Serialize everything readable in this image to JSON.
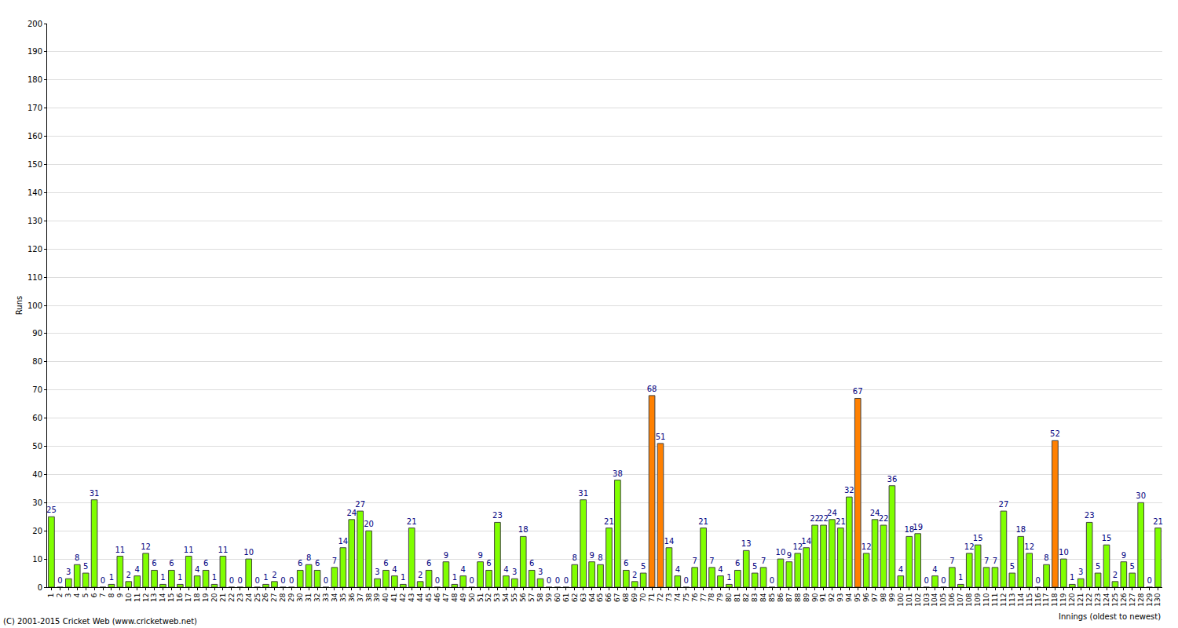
{
  "chart_data": {
    "type": "bar",
    "x_label": "Innings (oldest to newest)",
    "y_label": "Runs",
    "annotations": [
      "(C) 2001-2015 Cricket Web (www.cricketweb.net)"
    ],
    "categories": [
      "1",
      "2",
      "3",
      "4",
      "5",
      "6",
      "7",
      "8",
      "9",
      "10",
      "11",
      "12",
      "13",
      "14",
      "15",
      "16",
      "17",
      "18",
      "19",
      "20",
      "21",
      "22",
      "23",
      "24",
      "25",
      "26",
      "27",
      "28",
      "29",
      "30",
      "31",
      "32",
      "33",
      "34",
      "35",
      "36",
      "37",
      "38",
      "39",
      "40",
      "41",
      "42",
      "43",
      "44",
      "45",
      "46",
      "47",
      "48",
      "49",
      "50",
      "51",
      "52",
      "53",
      "54",
      "55",
      "56",
      "57",
      "58",
      "59",
      "60",
      "61",
      "62",
      "63",
      "64",
      "65",
      "66",
      "67",
      "68",
      "69",
      "70",
      "71",
      "72",
      "73",
      "74",
      "75",
      "76",
      "77",
      "78",
      "79",
      "80",
      "81",
      "82",
      "83",
      "84",
      "85",
      "86",
      "87",
      "88",
      "89",
      "90",
      "91",
      "92",
      "93",
      "94",
      "95",
      "96",
      "97",
      "98",
      "99",
      "100",
      "101",
      "102",
      "103",
      "104",
      "105",
      "106",
      "107",
      "108",
      "109",
      "110",
      "111",
      "112",
      "113",
      "114",
      "115",
      "116",
      "117",
      "118",
      "119",
      "120",
      "121",
      "122",
      "123",
      "124",
      "125",
      "126",
      "127",
      "128",
      "129",
      "130"
    ],
    "values": [
      25,
      0,
      3,
      8,
      5,
      31,
      0,
      1,
      11,
      2,
      4,
      12,
      6,
      1,
      6,
      1,
      11,
      4,
      6,
      1,
      11,
      0,
      0,
      10,
      0,
      1,
      2,
      0,
      0,
      6,
      8,
      6,
      0,
      7,
      14,
      24,
      27,
      20,
      3,
      6,
      4,
      1,
      21,
      2,
      6,
      0,
      9,
      1,
      4,
      0,
      9,
      6,
      23,
      4,
      3,
      18,
      6,
      3,
      0,
      0,
      0,
      8,
      31,
      9,
      8,
      21,
      38,
      6,
      2,
      5,
      68,
      51,
      14,
      4,
      0,
      7,
      21,
      7,
      4,
      1,
      6,
      13,
      5,
      7,
      0,
      10,
      9,
      12,
      14,
      22,
      22,
      24,
      21,
      32,
      67,
      12,
      24,
      22,
      36,
      4,
      18,
      19,
      0,
      4,
      0,
      7,
      1,
      12,
      15,
      7,
      7,
      27,
      5,
      18,
      12,
      0,
      8,
      52,
      10,
      1,
      3,
      23,
      5,
      15,
      2,
      9,
      5,
      30,
      0,
      21
    ],
    "colors": [
      "#80ff00",
      "#80ff00",
      "#80ff00",
      "#80ff00",
      "#80ff00",
      "#80ff00",
      "#80ff00",
      "#80ff00",
      "#80ff00",
      "#80ff00",
      "#80ff00",
      "#80ff00",
      "#80ff00",
      "#80ff00",
      "#80ff00",
      "#80ff00",
      "#80ff00",
      "#80ff00",
      "#80ff00",
      "#80ff00",
      "#80ff00",
      "#80ff00",
      "#80ff00",
      "#80ff00",
      "#80ff00",
      "#80ff00",
      "#80ff00",
      "#80ff00",
      "#80ff00",
      "#80ff00",
      "#80ff00",
      "#80ff00",
      "#80ff00",
      "#80ff00",
      "#80ff00",
      "#80ff00",
      "#80ff00",
      "#80ff00",
      "#80ff00",
      "#80ff00",
      "#80ff00",
      "#80ff00",
      "#80ff00",
      "#80ff00",
      "#80ff00",
      "#80ff00",
      "#80ff00",
      "#80ff00",
      "#80ff00",
      "#80ff00",
      "#80ff00",
      "#80ff00",
      "#80ff00",
      "#80ff00",
      "#80ff00",
      "#80ff00",
      "#80ff00",
      "#80ff00",
      "#80ff00",
      "#80ff00",
      "#80ff00",
      "#80ff00",
      "#80ff00",
      "#80ff00",
      "#80ff00",
      "#80ff00",
      "#80ff00",
      "#80ff00",
      "#80ff00",
      "#80ff00",
      "#ff8000",
      "#ff8000",
      "#80ff00",
      "#80ff00",
      "#80ff00",
      "#80ff00",
      "#80ff00",
      "#80ff00",
      "#80ff00",
      "#80ff00",
      "#80ff00",
      "#80ff00",
      "#80ff00",
      "#80ff00",
      "#80ff00",
      "#80ff00",
      "#80ff00",
      "#80ff00",
      "#80ff00",
      "#80ff00",
      "#80ff00",
      "#80ff00",
      "#80ff00",
      "#80ff00",
      "#ff8000",
      "#80ff00",
      "#80ff00",
      "#80ff00",
      "#80ff00",
      "#80ff00",
      "#80ff00",
      "#80ff00",
      "#80ff00",
      "#80ff00",
      "#80ff00",
      "#80ff00",
      "#80ff00",
      "#80ff00",
      "#80ff00",
      "#80ff00",
      "#80ff00",
      "#80ff00",
      "#80ff00",
      "#80ff00",
      "#80ff00",
      "#80ff00",
      "#80ff00",
      "#ff8000",
      "#80ff00",
      "#80ff00",
      "#80ff00",
      "#80ff00",
      "#80ff00",
      "#80ff00",
      "#80ff00",
      "#80ff00",
      "#80ff00",
      "#80ff00",
      "#80ff00",
      "#80ff00"
    ],
    "ylim": [
      0,
      200
    ],
    "yticks": [
      0,
      10,
      20,
      30,
      40,
      50,
      60,
      70,
      80,
      90,
      100,
      110,
      120,
      130,
      140,
      150,
      160,
      170,
      180,
      190,
      200
    ],
    "grid": true,
    "data_labels": true
  }
}
